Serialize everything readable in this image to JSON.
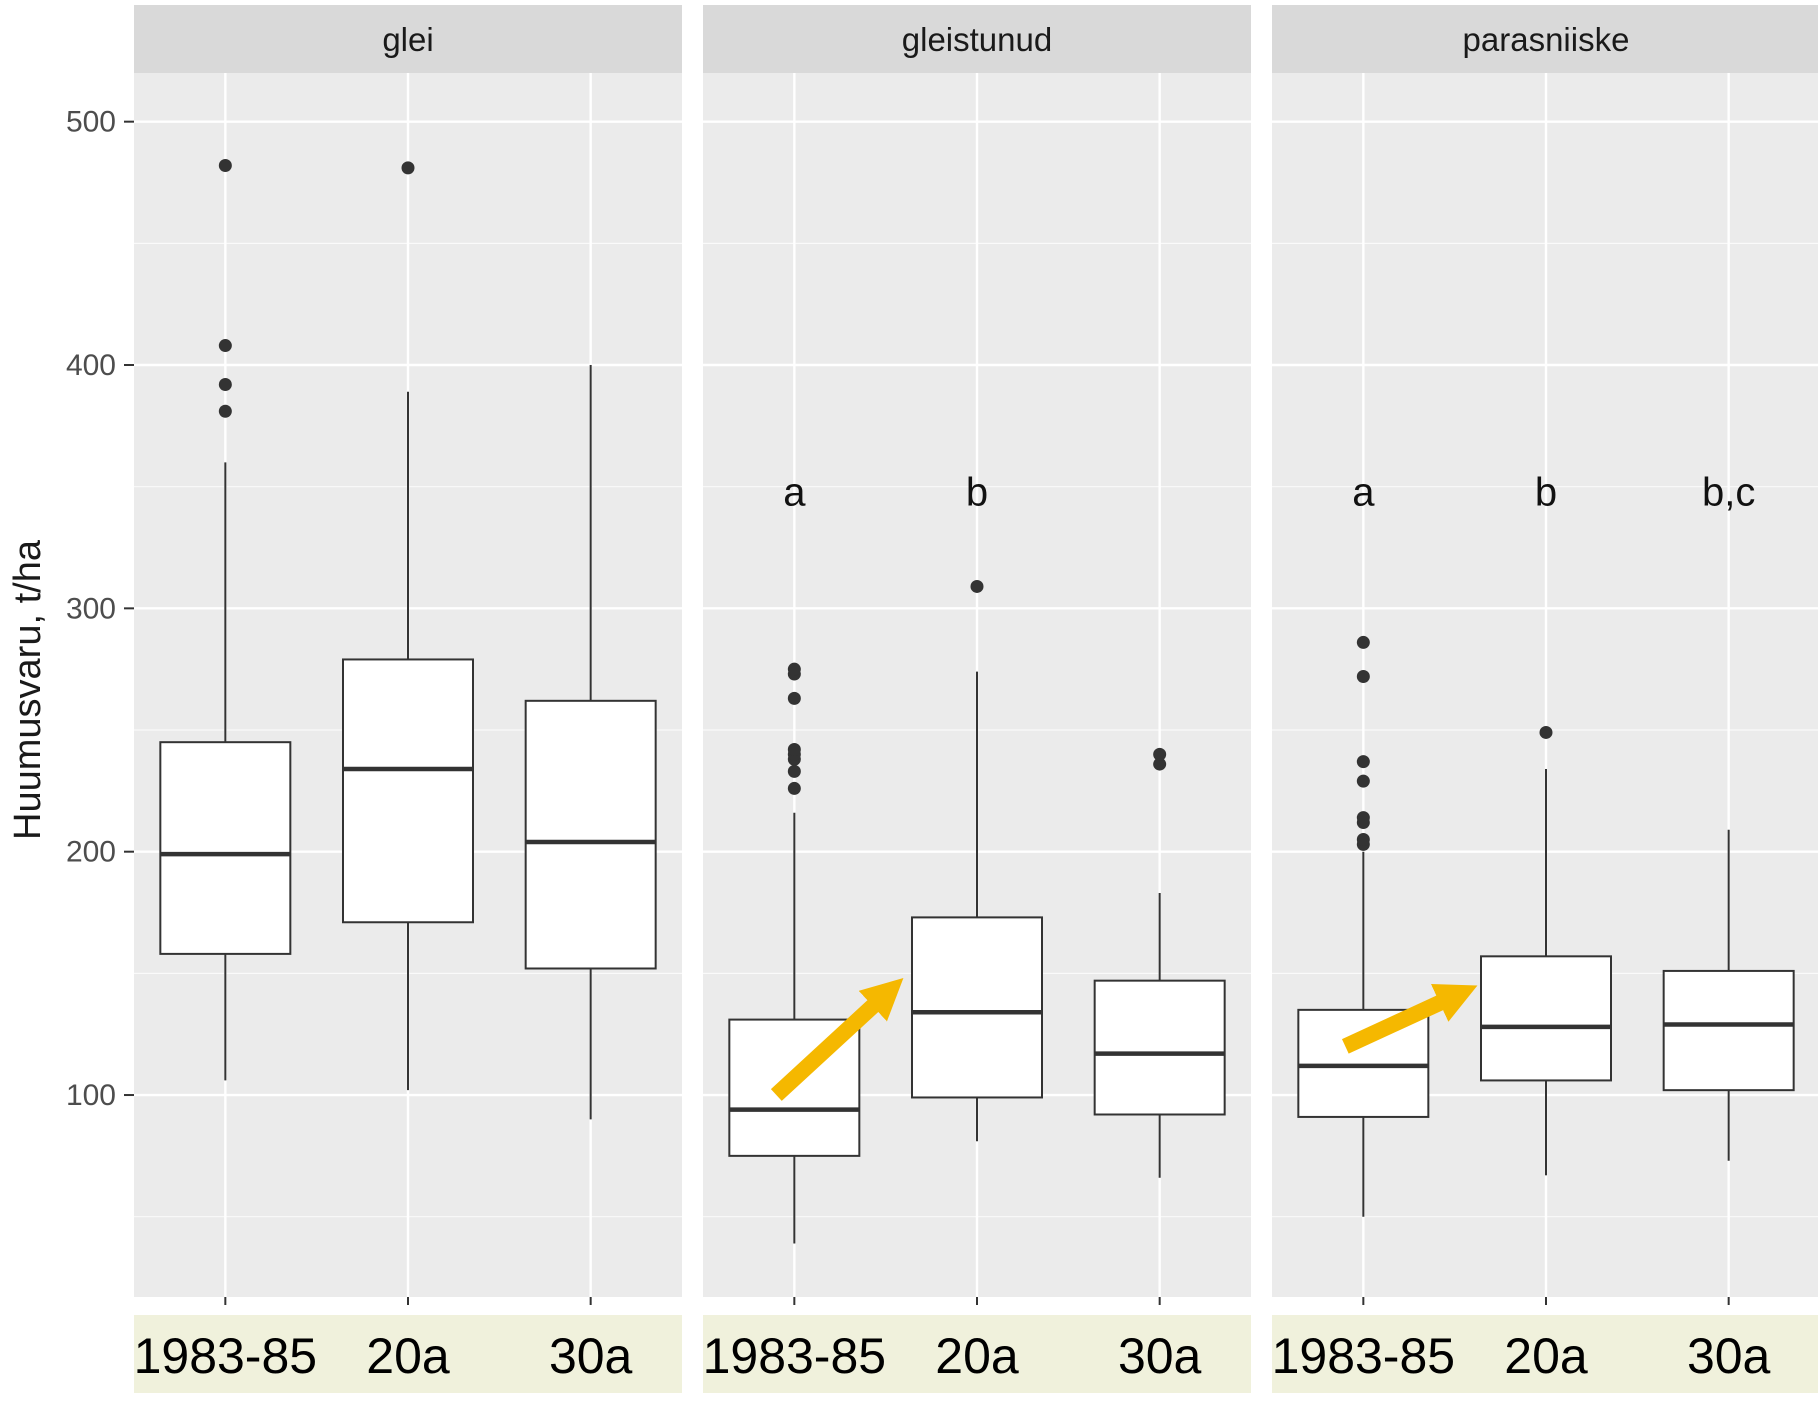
{
  "chart_data": {
    "type": "box",
    "ylabel": "Huumusvaru, t/ha",
    "xlabel": "",
    "ylim": [
      17,
      520
    ],
    "yticks": [
      100,
      200,
      300,
      400,
      500
    ],
    "grid": true,
    "categories": [
      "1983-85",
      "20a",
      "30a"
    ],
    "panels": [
      {
        "strip": "glei",
        "boxes": [
          {
            "category": "1983-85",
            "lower_whisker": 106,
            "q1": 158,
            "median": 199,
            "q3": 245,
            "upper_whisker": 360,
            "outliers": [
              381,
              392,
              408,
              482
            ],
            "letter": ""
          },
          {
            "category": "20a",
            "lower_whisker": 102,
            "q1": 171,
            "median": 234,
            "q3": 279,
            "upper_whisker": 389,
            "outliers": [
              481
            ],
            "letter": ""
          },
          {
            "category": "30a",
            "lower_whisker": 90,
            "q1": 152,
            "median": 204,
            "q3": 262,
            "upper_whisker": 400,
            "outliers": [],
            "letter": ""
          }
        ]
      },
      {
        "strip": "gleistunud",
        "boxes": [
          {
            "category": "1983-85",
            "lower_whisker": 39,
            "q1": 75,
            "median": 94,
            "q3": 131,
            "upper_whisker": 216,
            "outliers": [
              226,
              233,
              238,
              240,
              242,
              263,
              273,
              275
            ],
            "letter": "a"
          },
          {
            "category": "20a",
            "lower_whisker": 81,
            "q1": 99,
            "median": 134,
            "q3": 173,
            "upper_whisker": 274,
            "outliers": [
              309
            ],
            "letter": "b"
          },
          {
            "category": "30a",
            "lower_whisker": 66,
            "q1": 92,
            "median": 117,
            "q3": 147,
            "upper_whisker": 183,
            "outliers": [
              236,
              240
            ],
            "letter": ""
          }
        ]
      },
      {
        "strip": "parasniiske",
        "boxes": [
          {
            "category": "1983-85",
            "lower_whisker": 50,
            "q1": 91,
            "median": 112,
            "q3": 135,
            "upper_whisker": 200,
            "outliers": [
              203,
              205,
              212,
              214,
              229,
              237,
              272,
              286
            ],
            "letter": "a"
          },
          {
            "category": "20a",
            "lower_whisker": 67,
            "q1": 106,
            "median": 128,
            "q3": 157,
            "upper_whisker": 234,
            "outliers": [
              249
            ],
            "letter": "b"
          },
          {
            "category": "30a",
            "lower_whisker": 73,
            "q1": 102,
            "median": 129,
            "q3": 151,
            "upper_whisker": 209,
            "outliers": [],
            "letter": "b,c"
          }
        ]
      }
    ],
    "annotations": [
      {
        "panel": "gleistunud",
        "type": "arrow",
        "color": "#F5B800",
        "from": {
          "category": "1983-85",
          "y": 100
        },
        "to": {
          "category": "20a",
          "y": 140
        }
      },
      {
        "panel": "parasniiske",
        "type": "arrow",
        "color": "#F5B800",
        "from": {
          "category": "1983-85",
          "y": 120
        },
        "to": {
          "category": "20a",
          "y": 140
        }
      }
    ],
    "colors": {
      "panel_background": "#EBEBEB",
      "strip_background": "#D9D9D9",
      "grid": "#FFFFFF",
      "box_fill": "#FFFFFF",
      "box_line": "#333333",
      "outlier": "#333333",
      "category_label_background": "#F0F1DC",
      "arrow": "#F5B800"
    }
  }
}
